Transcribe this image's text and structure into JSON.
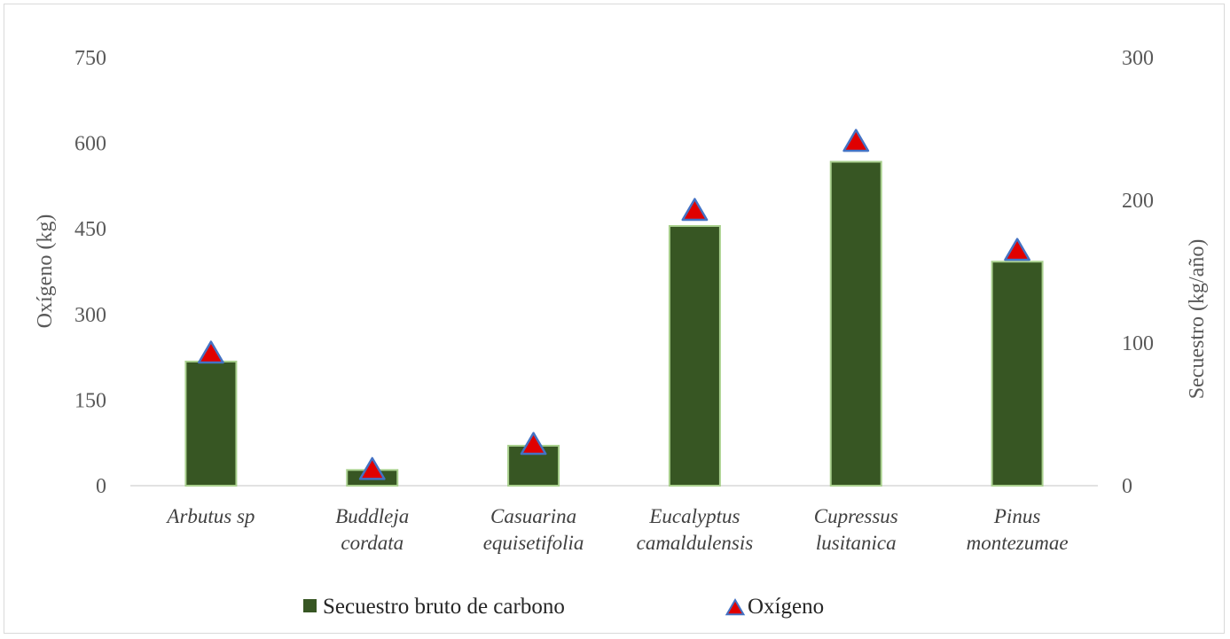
{
  "chart_data": {
    "type": "bar",
    "categories": [
      [
        "Arbutus sp"
      ],
      [
        "Buddleja",
        "cordata"
      ],
      [
        "Casuarina",
        "equisetifolia"
      ],
      [
        "Eucalyptus",
        "camaldulensis"
      ],
      [
        "Cupressus",
        "lusitanica"
      ],
      [
        "Pinus",
        "montezumae"
      ]
    ],
    "series": [
      {
        "name": "Secuestro bruto de carbono",
        "type": "bar",
        "axis": "right",
        "color": "#375623",
        "border_color": "#a9d08e",
        "values": [
          87,
          11,
          28,
          182,
          227,
          157
        ]
      },
      {
        "name": "Oxígeno",
        "type": "marker-triangle",
        "axis": "left",
        "color": "#e00000",
        "border_color": "#4472c4",
        "values": [
          232,
          28,
          72,
          482,
          603,
          412
        ]
      }
    ],
    "y_left": {
      "label": "Oxígeno (kg)",
      "ticks": [
        0,
        150,
        300,
        450,
        600,
        750
      ],
      "range": [
        0,
        750
      ]
    },
    "y_right": {
      "label": "Secuestro (kg/año)",
      "ticks": [
        0,
        100,
        200,
        300
      ],
      "range": [
        0,
        300
      ]
    },
    "grid": false,
    "legend_position": "bottom"
  }
}
